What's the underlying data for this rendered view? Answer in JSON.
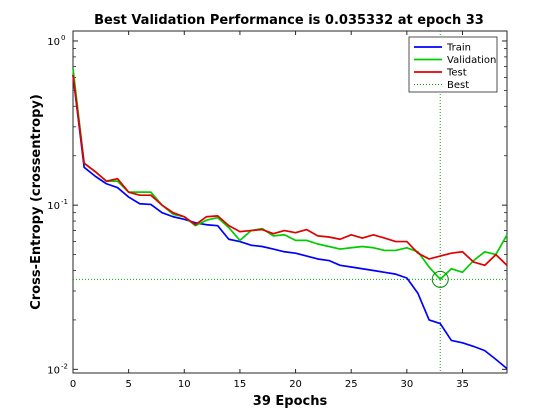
{
  "chart_data": {
    "type": "line",
    "title": "Best Validation Performance is 0.035332 at epoch 33",
    "xlabel": "39 Epochs",
    "ylabel": "Cross-Entropy  (crossentropy)",
    "xlim": [
      0,
      39
    ],
    "ylim": [
      0.0095,
      1.15
    ],
    "yscale": "log",
    "x_ticks": [
      0,
      5,
      10,
      15,
      20,
      25,
      30,
      35
    ],
    "y_ticks": [
      {
        "value": 0.01,
        "base": "10",
        "exp": "-2"
      },
      {
        "value": 0.1,
        "base": "10",
        "exp": "-1"
      },
      {
        "value": 1,
        "base": "10",
        "exp": "0"
      }
    ],
    "grid": false,
    "legend_position": "top-right",
    "x": [
      0,
      1,
      2,
      3,
      4,
      5,
      6,
      7,
      8,
      9,
      10,
      11,
      12,
      13,
      14,
      15,
      16,
      17,
      18,
      19,
      20,
      21,
      22,
      23,
      24,
      25,
      26,
      27,
      28,
      29,
      30,
      31,
      32,
      33,
      34,
      35,
      36,
      37,
      38,
      39
    ],
    "series": [
      {
        "name": "Train",
        "color": "#0000ff",
        "style": "solid",
        "values": [
          0.62,
          0.17,
          0.15,
          0.135,
          0.128,
          0.112,
          0.102,
          0.101,
          0.09,
          0.085,
          0.082,
          0.078,
          0.076,
          0.075,
          0.062,
          0.06,
          0.057,
          0.056,
          0.054,
          0.052,
          0.051,
          0.049,
          0.047,
          0.046,
          0.043,
          0.042,
          0.041,
          0.04,
          0.039,
          0.038,
          0.036,
          0.029,
          0.02,
          0.019,
          0.015,
          0.0145,
          0.0138,
          0.013,
          0.0115,
          0.0101
        ]
      },
      {
        "name": "Validation",
        "color": "#00cc00",
        "style": "solid",
        "values": [
          0.68,
          0.18,
          0.16,
          0.14,
          0.14,
          0.12,
          0.12,
          0.12,
          0.1,
          0.088,
          0.085,
          0.075,
          0.081,
          0.084,
          0.073,
          0.061,
          0.07,
          0.072,
          0.065,
          0.066,
          0.061,
          0.061,
          0.058,
          0.056,
          0.054,
          0.055,
          0.056,
          0.055,
          0.053,
          0.053,
          0.055,
          0.052,
          0.042,
          0.035332,
          0.041,
          0.039,
          0.046,
          0.052,
          0.05,
          0.066
        ]
      },
      {
        "name": "Test",
        "color": "#e00000",
        "style": "solid",
        "values": [
          0.62,
          0.18,
          0.16,
          0.14,
          0.145,
          0.12,
          0.115,
          0.115,
          0.1,
          0.09,
          0.085,
          0.076,
          0.085,
          0.086,
          0.075,
          0.069,
          0.07,
          0.071,
          0.067,
          0.07,
          0.068,
          0.071,
          0.065,
          0.064,
          0.062,
          0.066,
          0.063,
          0.066,
          0.063,
          0.06,
          0.06,
          0.051,
          0.047,
          0.049,
          0.051,
          0.052,
          0.045,
          0.043,
          0.05,
          0.043
        ]
      }
    ],
    "best": {
      "name": "Best",
      "epoch": 33,
      "value": 0.035332,
      "color": "#00aa00",
      "style": "dotted"
    }
  }
}
